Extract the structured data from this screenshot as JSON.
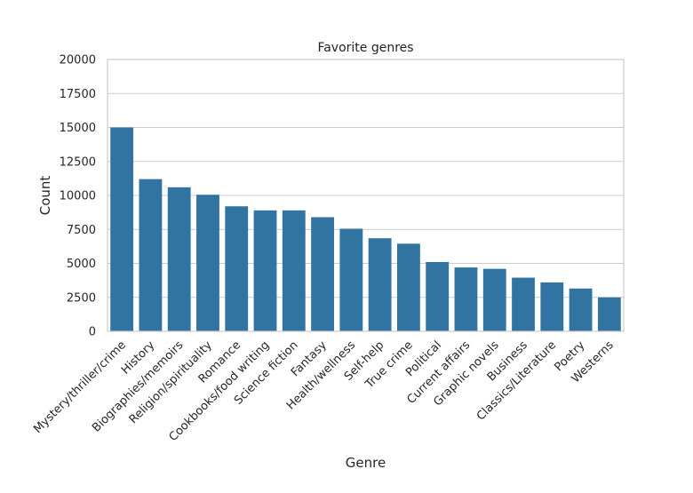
{
  "chart_data": {
    "type": "bar",
    "title": "Favorite genres",
    "xlabel": "Genre",
    "ylabel": "Count",
    "ylim": [
      0,
      20000
    ],
    "yticks": [
      0,
      2500,
      5000,
      7500,
      10000,
      12500,
      15000,
      17500,
      20000
    ],
    "grid": true,
    "bar_color": "#3274a1",
    "categories": [
      "Mystery/thriller/crime",
      "History",
      "Biographies/memoirs",
      "Religion/spirituality",
      "Romance",
      "Cookbooks/food writing",
      "Science fiction",
      "Fantasy",
      "Health/wellness",
      "Self-help",
      "True crime",
      "Political",
      "Current affairs",
      "Graphic novels",
      "Business",
      "Classics/Literature",
      "Poetry",
      "Westerns"
    ],
    "values": [
      15000,
      11200,
      10600,
      10050,
      9200,
      8900,
      8900,
      8400,
      7550,
      6850,
      6450,
      5100,
      4700,
      4600,
      3950,
      3600,
      3150,
      2500
    ]
  }
}
